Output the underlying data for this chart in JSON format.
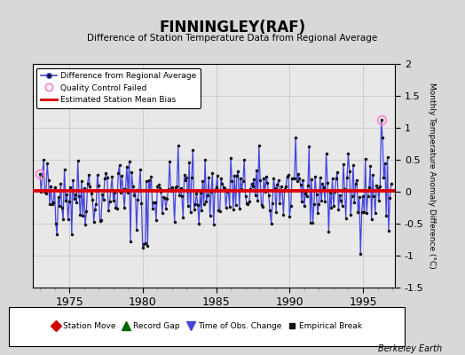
{
  "title": "FINNINGLEY(RAF)",
  "subtitle": "Difference of Station Temperature Data from Regional Average",
  "ylabel": "Monthly Temperature Anomaly Difference (°C)",
  "bias": 0.02,
  "ylim": [
    -1.5,
    2.0
  ],
  "xlim": [
    1972.5,
    1997.2
  ],
  "xticks": [
    1975,
    1980,
    1985,
    1990,
    1995
  ],
  "yticks": [
    -1.5,
    -1.0,
    -0.5,
    0.0,
    0.5,
    1.0,
    1.5,
    2.0
  ],
  "bg_color": "#e8e8e8",
  "fig_bg_color": "#d8d8d8",
  "line_color": "#4444dd",
  "marker_color": "#111111",
  "bias_color": "#dd0000",
  "grid_color": "#cccccc",
  "qc_edge_color": "#ff88cc",
  "watermark": "Berkeley Earth",
  "seed": 42
}
